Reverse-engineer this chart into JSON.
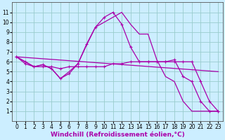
{
  "background_color": "#cceeff",
  "grid_color": "#99cccc",
  "line_color": "#aa00aa",
  "marker": "+",
  "markersize": 3,
  "linewidth": 0.9,
  "xlabel": "Windchill (Refroidissement éolien,°C)",
  "xlabel_fontsize": 6.5,
  "tick_fontsize": 5.5,
  "xlim": [
    -0.5,
    23.5
  ],
  "ylim": [
    0,
    12
  ],
  "yticks": [
    1,
    2,
    3,
    4,
    5,
    6,
    7,
    8,
    9,
    10,
    11
  ],
  "xticks": [
    0,
    1,
    2,
    3,
    4,
    5,
    6,
    7,
    8,
    9,
    10,
    11,
    12,
    13,
    14,
    15,
    16,
    17,
    18,
    19,
    20,
    21,
    22,
    23
  ],
  "series1_x": [
    0,
    1,
    2,
    3,
    4,
    5,
    6,
    7,
    8,
    9,
    10,
    11,
    12,
    13,
    14,
    15,
    16,
    17,
    18,
    19,
    20,
    21,
    22,
    23
  ],
  "series1_y": [
    6.5,
    6.0,
    5.5,
    5.7,
    5.3,
    4.3,
    4.8,
    5.8,
    7.8,
    9.5,
    10.5,
    11.0,
    9.8,
    7.5,
    6.0,
    6.0,
    6.0,
    6.0,
    6.2,
    4.5,
    4.0,
    2.0,
    1.0,
    1.0
  ],
  "series2_x": [
    0,
    1,
    2,
    3,
    4,
    5,
    6,
    7,
    8,
    9,
    10,
    11,
    12,
    13,
    14,
    15,
    16,
    17,
    18,
    19,
    20,
    21,
    22,
    23
  ],
  "series2_y": [
    6.5,
    5.8,
    5.5,
    5.5,
    5.5,
    5.3,
    5.5,
    5.5,
    5.5,
    5.5,
    5.5,
    5.8,
    5.8,
    6.0,
    6.0,
    6.0,
    6.0,
    6.0,
    6.0,
    6.0,
    6.0,
    4.0,
    2.0,
    1.0
  ],
  "series3_x": [
    0,
    2,
    3,
    4,
    5,
    6,
    7,
    8,
    9,
    10,
    11,
    12,
    13,
    14,
    15,
    16,
    17,
    18,
    19,
    20,
    21,
    22,
    23
  ],
  "series3_y": [
    6.5,
    5.5,
    5.7,
    5.3,
    4.3,
    5.0,
    5.8,
    7.7,
    9.5,
    10.0,
    10.5,
    11.0,
    9.8,
    8.8,
    8.8,
    6.2,
    4.5,
    4.0,
    2.0,
    1.0,
    1.0,
    1.0,
    1.0
  ],
  "series4_x": [
    0,
    23
  ],
  "series4_y": [
    6.5,
    5.0
  ]
}
